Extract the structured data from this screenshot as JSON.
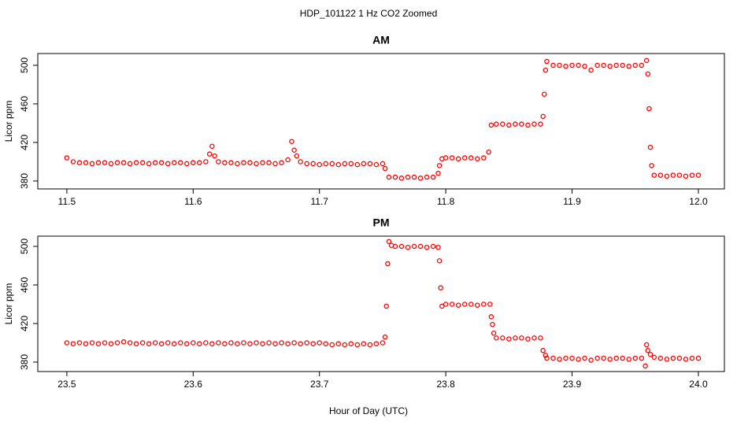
{
  "title": "HDP_101122  1 Hz CO2 Zoomed",
  "xlabel": "Hour of Day (UTC)",
  "chart_data": [
    {
      "type": "scatter",
      "title": "AM",
      "ylabel": "Licor ppm",
      "color": "#ff0000",
      "xlim": [
        11.477,
        12.0206
      ],
      "ylim": [
        371.8,
        512.2
      ],
      "xticks": [
        11.5,
        11.6,
        11.7,
        11.8,
        11.9,
        {
          "value": 12,
          "label": "12.0"
        }
      ],
      "yticks": [
        380,
        420,
        460,
        500
      ],
      "x": [
        11.5,
        11.505,
        11.51,
        11.515,
        11.52,
        11.525,
        11.53,
        11.535,
        11.54,
        11.545,
        11.55,
        11.555,
        11.56,
        11.565,
        11.57,
        11.575,
        11.58,
        11.585,
        11.59,
        11.595,
        11.6,
        11.605,
        11.61,
        11.613,
        11.615,
        11.617,
        11.62,
        11.625,
        11.63,
        11.635,
        11.64,
        11.645,
        11.65,
        11.655,
        11.66,
        11.665,
        11.67,
        11.675,
        11.678,
        11.68,
        11.682,
        11.685,
        11.69,
        11.695,
        11.7,
        11.705,
        11.71,
        11.715,
        11.72,
        11.725,
        11.73,
        11.735,
        11.74,
        11.745,
        11.75,
        11.752,
        11.755,
        11.76,
        11.765,
        11.77,
        11.775,
        11.78,
        11.785,
        11.79,
        11.794,
        11.795,
        11.797,
        11.8,
        11.805,
        11.81,
        11.815,
        11.82,
        11.825,
        11.83,
        11.834,
        11.836,
        11.84,
        11.845,
        11.85,
        11.855,
        11.86,
        11.865,
        11.87,
        11.875,
        11.877,
        11.878,
        11.879,
        11.88,
        11.885,
        11.89,
        11.895,
        11.9,
        11.905,
        11.91,
        11.915,
        11.92,
        11.925,
        11.93,
        11.935,
        11.94,
        11.945,
        11.95,
        11.955,
        11.959,
        11.96,
        11.961,
        11.962,
        11.963,
        11.965,
        11.97,
        11.975,
        11.98,
        11.985,
        11.99,
        11.995,
        12.0
      ],
      "values": [
        404,
        400,
        399,
        399,
        398,
        399,
        399,
        398,
        399,
        399,
        398,
        399,
        399,
        398,
        399,
        399,
        398,
        399,
        399,
        398,
        399,
        399,
        400,
        408,
        416,
        406,
        400,
        399,
        399,
        398,
        399,
        399,
        398,
        399,
        399,
        398,
        399,
        402,
        421,
        412,
        406,
        400,
        398,
        398,
        397,
        398,
        398,
        397,
        398,
        398,
        397,
        398,
        398,
        397,
        398,
        393,
        384,
        384,
        383,
        384,
        384,
        383,
        384,
        384,
        388,
        396,
        403,
        404,
        404,
        403,
        404,
        404,
        403,
        404,
        410,
        438,
        439,
        439,
        438,
        439,
        439,
        438,
        439,
        439,
        447,
        470,
        495,
        504,
        500,
        500,
        499,
        500,
        500,
        499,
        495,
        500,
        500,
        499,
        500,
        500,
        499,
        500,
        500,
        505,
        491,
        455,
        415,
        396,
        386,
        386,
        385,
        386,
        386,
        385,
        386,
        386
      ]
    },
    {
      "type": "scatter",
      "title": "PM",
      "ylabel": "Licor ppm",
      "color": "#ff0000",
      "xlim": [
        23.477,
        24.0206
      ],
      "ylim": [
        370.2,
        510.6
      ],
      "xticks": [
        23.5,
        23.6,
        23.7,
        23.8,
        23.9,
        {
          "value": 24,
          "label": "24.0"
        }
      ],
      "yticks": [
        380,
        420,
        460,
        500
      ],
      "x": [
        23.5,
        23.505,
        23.51,
        23.515,
        23.52,
        23.525,
        23.53,
        23.535,
        23.54,
        23.545,
        23.55,
        23.555,
        23.56,
        23.565,
        23.57,
        23.575,
        23.58,
        23.585,
        23.59,
        23.595,
        23.6,
        23.605,
        23.61,
        23.615,
        23.62,
        23.625,
        23.63,
        23.635,
        23.64,
        23.645,
        23.65,
        23.655,
        23.66,
        23.665,
        23.67,
        23.675,
        23.68,
        23.685,
        23.69,
        23.695,
        23.7,
        23.705,
        23.71,
        23.715,
        23.72,
        23.725,
        23.73,
        23.735,
        23.74,
        23.745,
        23.75,
        23.752,
        23.753,
        23.754,
        23.755,
        23.757,
        23.76,
        23.765,
        23.77,
        23.775,
        23.78,
        23.785,
        23.79,
        23.794,
        23.795,
        23.796,
        23.797,
        23.8,
        23.805,
        23.81,
        23.815,
        23.82,
        23.825,
        23.83,
        23.835,
        23.836,
        23.837,
        23.838,
        23.84,
        23.845,
        23.85,
        23.855,
        23.86,
        23.865,
        23.87,
        23.875,
        23.877,
        23.879,
        23.88,
        23.885,
        23.89,
        23.895,
        23.9,
        23.905,
        23.91,
        23.915,
        23.92,
        23.925,
        23.93,
        23.935,
        23.94,
        23.945,
        23.95,
        23.955,
        23.958,
        23.959,
        23.96,
        23.962,
        23.965,
        23.97,
        23.975,
        23.98,
        23.985,
        23.99,
        23.995,
        24.0
      ],
      "values": [
        400,
        399,
        400,
        399,
        400,
        399,
        400,
        399,
        400,
        401,
        400,
        399,
        400,
        399,
        400,
        399,
        400,
        399,
        400,
        399,
        400,
        399,
        400,
        399,
        400,
        399,
        400,
        399,
        400,
        399,
        400,
        399,
        400,
        399,
        400,
        399,
        400,
        399,
        400,
        399,
        400,
        399,
        398,
        399,
        398,
        399,
        398,
        399,
        398,
        399,
        400,
        406,
        438,
        482,
        505,
        501,
        500,
        500,
        499,
        500,
        500,
        499,
        500,
        499,
        485,
        457,
        438,
        440,
        440,
        439,
        440,
        440,
        439,
        440,
        440,
        427,
        419,
        410,
        405,
        405,
        404,
        405,
        405,
        404,
        405,
        405,
        392,
        387,
        384,
        384,
        383,
        384,
        384,
        383,
        384,
        382,
        384,
        384,
        383,
        384,
        384,
        383,
        384,
        384,
        376,
        398,
        392,
        388,
        385,
        384,
        383,
        384,
        384,
        383,
        384,
        384
      ]
    }
  ]
}
